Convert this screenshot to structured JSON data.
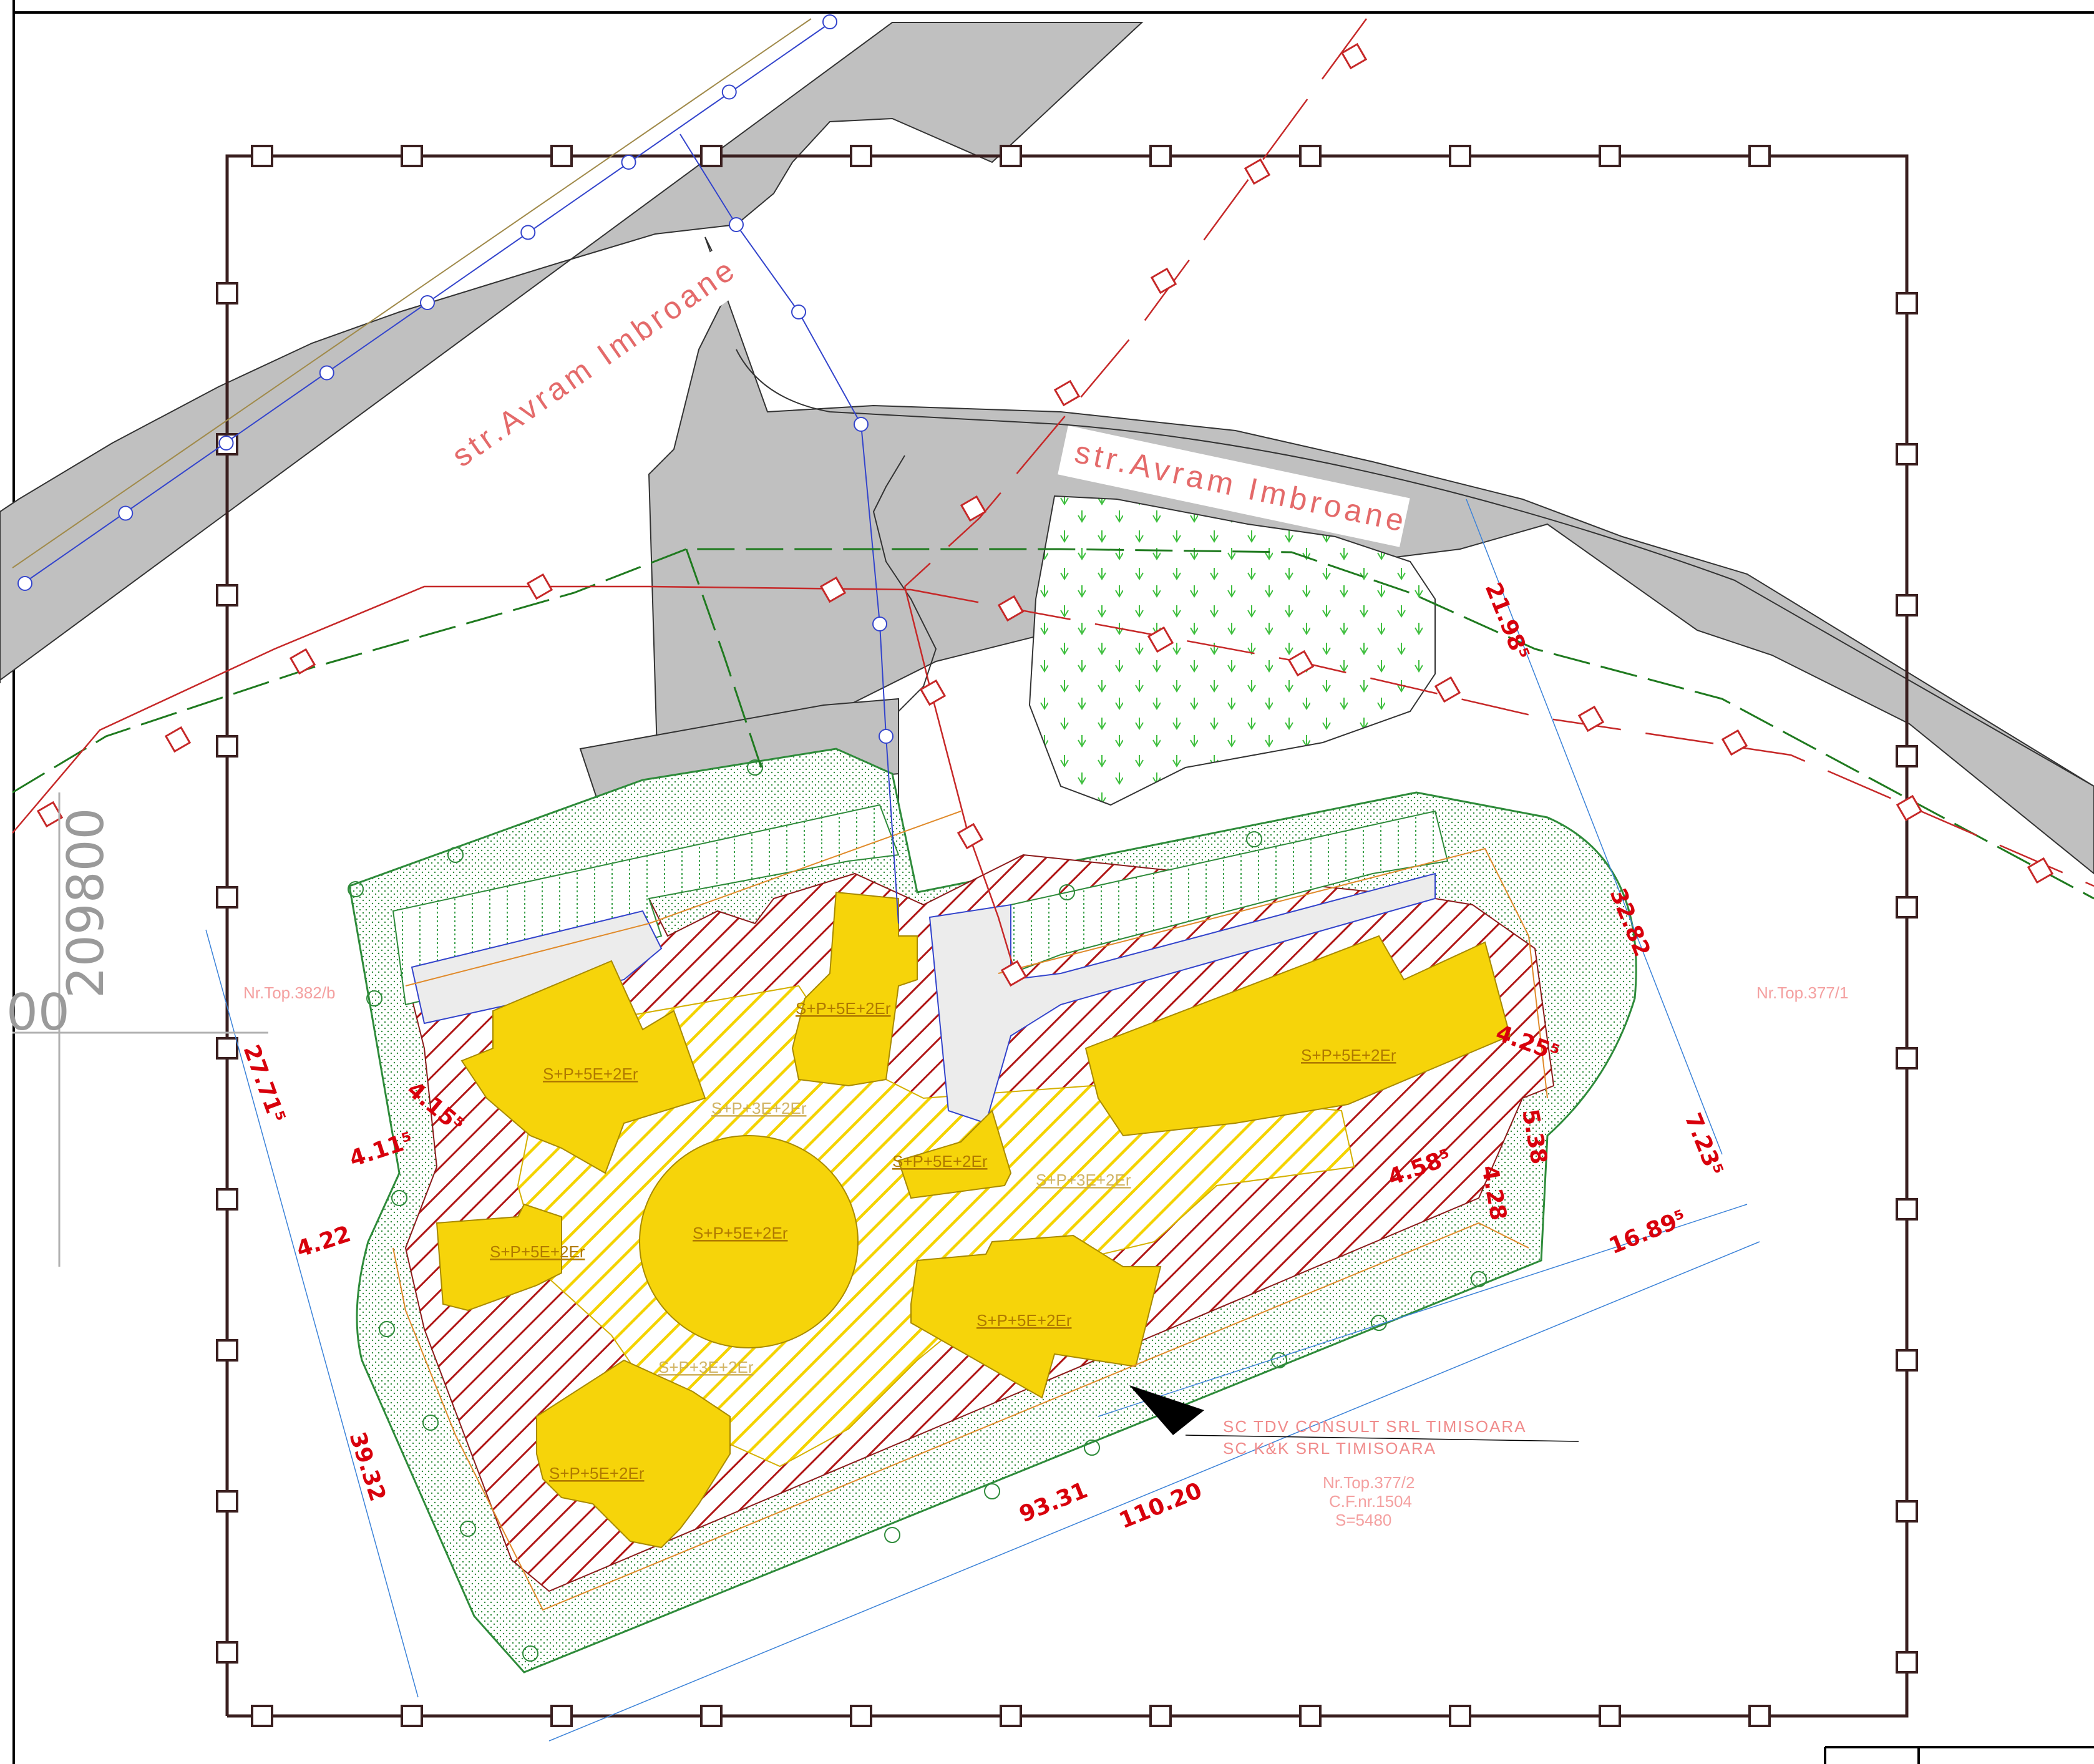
{
  "streets": [
    "str.Avram  Imbroane",
    "str.Avram  Imbroane"
  ],
  "building_label": "S+P+5E+2Er",
  "building_label_existing": "S+P+3E+2Er",
  "dimensions": {
    "d1": "21.98⁵",
    "d2": "32.82",
    "d3": "7.23⁵",
    "d4": "4.25⁵",
    "d5": "5.38",
    "d6": "4.28",
    "d7": "4.58⁵",
    "d8": "16.89⁵",
    "d9": "27.71⁵",
    "d10": "4.15⁵",
    "d11": "4.11⁵",
    "d12": "4.22",
    "d13": "39.32",
    "d14": "93.31",
    "d15": "110.20"
  },
  "parcels": {
    "left": "Nr.Top.382/b",
    "right": "Nr.Top.377/1",
    "main": "Nr.Top.377/2",
    "cf": "C.F.nr.1504",
    "area": "S=5480"
  },
  "companies": [
    "SC TDV CONSULT SRL TIMISOARA",
    "SC K&K SRL TIMISOARA"
  ],
  "coordinate": "209800",
  "coordinate_partial": "00",
  "colors": {
    "road": "#c0c0c0",
    "building": "#f6d40a",
    "hatch_red": "#b01515",
    "hatch_yellow": "#f4d300",
    "green_network": "#1f7a1f",
    "red_network": "#c62828",
    "blue_network": "#3344cc",
    "plot_frame": "#3a1f1f"
  }
}
